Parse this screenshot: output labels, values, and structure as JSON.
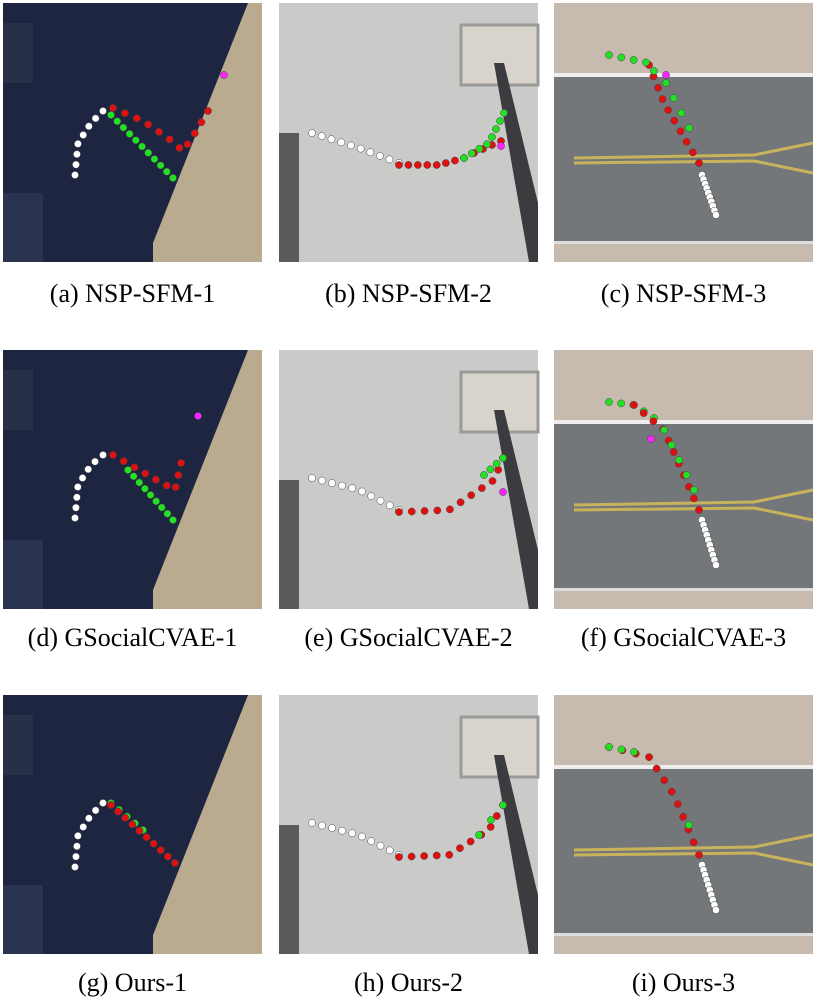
{
  "figure": {
    "captions": [
      "(a) NSP-SFM-1",
      "(b) NSP-SFM-2",
      "(c) NSP-SFM-3",
      "(d) GSocialCVAE-1",
      "(e) GSocialCVAE-2",
      "(f) GSocialCVAE-3",
      "(g) Ours-1",
      "(h) Ours-2",
      "(i) Ours-3"
    ]
  }
}
